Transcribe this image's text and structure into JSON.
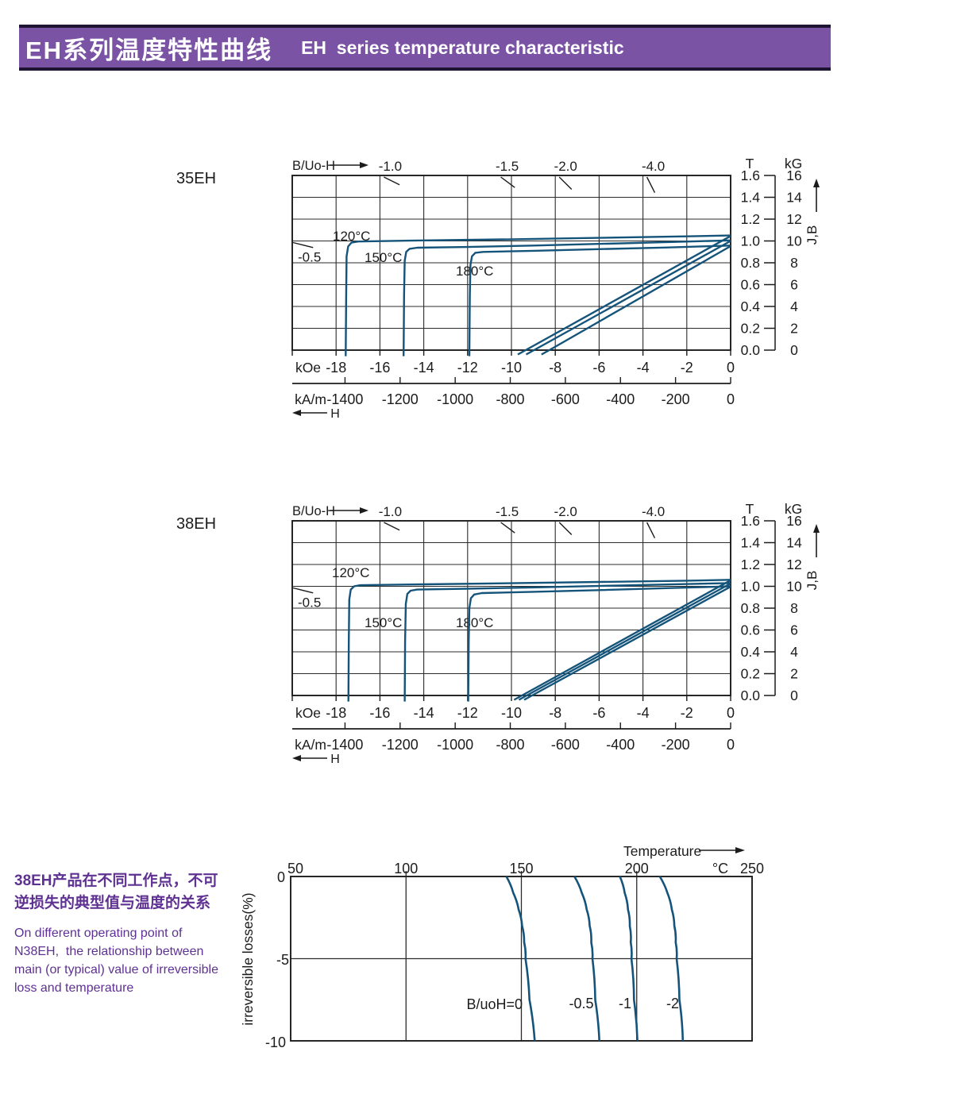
{
  "header": {
    "title_zh": "EH系列温度特性曲线",
    "title_en": "EH  series temperature characteristic"
  },
  "colors": {
    "banner_purple": "#7a53a5",
    "banner_border": "#201434",
    "purple_text": "#5e3192",
    "curve_blue": "#15547a",
    "line_black": "#1c1c1c",
    "grid_gray": "#2b2b2b"
  },
  "section_labels": {
    "chart1": "35EH",
    "chart2": "38EH"
  },
  "demag_axis": {
    "b_axis_label": "B/Uo-H",
    "koe_unit": "kOe",
    "kam_unit": "kA/m",
    "h_arrow_label": "H",
    "t_unit": "T",
    "kg_unit": "kG",
    "jb_arrow_label": "J,B",
    "koe_ticks": [
      -18,
      -16,
      -14,
      -12,
      -10,
      -8,
      -6,
      -4,
      -2,
      0
    ],
    "kam_ticks": [
      -1400,
      -1200,
      -1000,
      -800,
      -600,
      -400,
      -200,
      0
    ],
    "t_ticks": [
      "1.6",
      "1.4",
      "1.2",
      "1.0",
      "0.8",
      "0.6",
      "0.4",
      "0.2",
      "0.0"
    ],
    "kg_ticks": [
      "16",
      "14",
      "12",
      "10",
      "8",
      "6",
      "4",
      "2",
      "0"
    ],
    "load_lines_top": [
      {
        "label": "-1.0",
        "slope": 1.0
      },
      {
        "label": "-1.5",
        "slope": 1.5
      },
      {
        "label": "-2.0",
        "slope": 2.0
      },
      {
        "label": "-4.0",
        "slope": 4.0
      }
    ],
    "load_line_left": {
      "label": "-0.5",
      "slope": 0.5
    }
  },
  "chart_data": [
    {
      "type": "line",
      "id": "demag-35EH",
      "title": "35EH",
      "xlabel": "H",
      "x_units": [
        "kOe",
        "kA/m"
      ],
      "y_units": [
        "T",
        "kG"
      ],
      "xlim_kOe": [
        -20,
        0
      ],
      "ylim_kG": [
        0,
        16
      ],
      "grid": true,
      "load_lines": [
        -0.5,
        -1.0,
        -1.5,
        -2.0,
        -4.0
      ],
      "temperature_labels": [
        "120°C",
        "150°C",
        "180°C"
      ],
      "series": [
        {
          "name": "J 120°C",
          "points": [
            [
              -17.56,
              -0.55
            ],
            [
              -17.54,
              5
            ],
            [
              -17.52,
              8.6
            ],
            [
              -17.45,
              9.5
            ],
            [
              -17.3,
              9.85
            ],
            [
              -17.0,
              9.95
            ],
            [
              -14,
              10.05
            ],
            [
              -10,
              10.15
            ],
            [
              -6,
              10.28
            ],
            [
              -2,
              10.42
            ],
            [
              0,
              10.5
            ]
          ]
        },
        {
          "name": "J 150°C",
          "points": [
            [
              -14.92,
              -0.55
            ],
            [
              -14.9,
              5
            ],
            [
              -14.87,
              8.2
            ],
            [
              -14.8,
              9.0
            ],
            [
              -14.65,
              9.28
            ],
            [
              -14.3,
              9.38
            ],
            [
              -12,
              9.45
            ],
            [
              -9,
              9.58
            ],
            [
              -5,
              9.78
            ],
            [
              0,
              10.05
            ]
          ]
        },
        {
          "name": "J 180°C",
          "points": [
            [
              -11.92,
              -0.55
            ],
            [
              -11.9,
              5
            ],
            [
              -11.87,
              7.8
            ],
            [
              -11.8,
              8.6
            ],
            [
              -11.65,
              8.92
            ],
            [
              -11.3,
              9.0
            ],
            [
              -9,
              9.1
            ],
            [
              -6,
              9.25
            ],
            [
              -3,
              9.4
            ],
            [
              0,
              9.58
            ]
          ]
        },
        {
          "name": "B 120°C",
          "points": [
            [
              -9.71,
              -0.4
            ],
            [
              -9.35,
              0
            ],
            [
              0,
              10.45
            ]
          ]
        },
        {
          "name": "B 150°C",
          "points": [
            [
              -9.33,
              -0.4
            ],
            [
              -8.97,
              0
            ],
            [
              0,
              10.0
            ]
          ]
        },
        {
          "name": "B 180°C",
          "points": [
            [
              -8.63,
              -0.4
            ],
            [
              -8.27,
              0
            ],
            [
              0,
              9.53
            ]
          ]
        }
      ]
    },
    {
      "type": "line",
      "id": "demag-38EH",
      "title": "38EH",
      "xlabel": "H",
      "x_units": [
        "kOe",
        "kA/m"
      ],
      "y_units": [
        "T",
        "kG"
      ],
      "xlim_kOe": [
        -20,
        0
      ],
      "ylim_kG": [
        0,
        16
      ],
      "grid": true,
      "load_lines": [
        -0.5,
        -1.0,
        -1.5,
        -2.0,
        -4.0
      ],
      "temperature_labels": [
        "120°C",
        "150°C",
        "180°C"
      ],
      "series": [
        {
          "name": "J 120°C",
          "points": [
            [
              -17.44,
              -0.55
            ],
            [
              -17.42,
              5
            ],
            [
              -17.4,
              8.8
            ],
            [
              -17.33,
              9.7
            ],
            [
              -17.18,
              10.0
            ],
            [
              -16.9,
              10.1
            ],
            [
              -14,
              10.18
            ],
            [
              -10,
              10.28
            ],
            [
              -6,
              10.4
            ],
            [
              -2,
              10.52
            ],
            [
              0,
              10.6
            ]
          ]
        },
        {
          "name": "J 150°C",
          "points": [
            [
              -14.87,
              -0.55
            ],
            [
              -14.85,
              5
            ],
            [
              -14.82,
              8.4
            ],
            [
              -14.75,
              9.3
            ],
            [
              -14.6,
              9.6
            ],
            [
              -14.3,
              9.7
            ],
            [
              -12,
              9.78
            ],
            [
              -9,
              9.9
            ],
            [
              -5,
              10.08
            ],
            [
              0,
              10.3
            ]
          ]
        },
        {
          "name": "J 180°C",
          "points": [
            [
              -11.97,
              -0.55
            ],
            [
              -11.95,
              5
            ],
            [
              -11.92,
              8.0
            ],
            [
              -11.85,
              8.9
            ],
            [
              -11.7,
              9.25
            ],
            [
              -11.35,
              9.38
            ],
            [
              -9,
              9.5
            ],
            [
              -6,
              9.65
            ],
            [
              -2,
              9.88
            ],
            [
              0,
              10.0
            ]
          ]
        },
        {
          "name": "B 120°C",
          "points": [
            [
              -9.88,
              -0.4
            ],
            [
              -9.52,
              0
            ],
            [
              0,
              10.55
            ]
          ]
        },
        {
          "name": "B 150°C",
          "points": [
            [
              -9.66,
              -0.4
            ],
            [
              -9.3,
              0
            ],
            [
              0,
              10.26
            ]
          ]
        },
        {
          "name": "B 180°C",
          "points": [
            [
              -9.42,
              -0.4
            ],
            [
              -9.06,
              0
            ],
            [
              0,
              9.97
            ]
          ]
        }
      ]
    },
    {
      "type": "line",
      "id": "irreversible-loss-38EH",
      "xlabel": "Temperature",
      "x_unit": "°C",
      "ylabel": "irreversible  losses(%)",
      "xlim": [
        50,
        250
      ],
      "ylim": [
        -10,
        0
      ],
      "x_ticks": [
        "50",
        "100",
        "150",
        "200",
        "250"
      ],
      "y_ticks": [
        "0",
        "-5",
        "-10"
      ],
      "series": [
        {
          "name": "B/uoH=0",
          "points": [
            [
              143.5,
              0
            ],
            [
              146.5,
              -1
            ],
            [
              148.8,
              -2
            ],
            [
              150.3,
              -3
            ],
            [
              151.2,
              -4
            ],
            [
              151.8,
              -5
            ],
            [
              153.5,
              -7.5
            ],
            [
              155.8,
              -10
            ]
          ]
        },
        {
          "name": "-0.5",
          "points": [
            [
              173.0,
              0
            ],
            [
              176.2,
              -1
            ],
            [
              178.3,
              -2
            ],
            [
              179.6,
              -3
            ],
            [
              180.3,
              -4
            ],
            [
              180.8,
              -5
            ],
            [
              182.0,
              -7.5
            ],
            [
              183.8,
              -10
            ]
          ]
        },
        {
          "name": "-1",
          "points": [
            [
              192.7,
              0
            ],
            [
              194.8,
              -1
            ],
            [
              196.2,
              -2
            ],
            [
              197.0,
              -3
            ],
            [
              197.4,
              -4
            ],
            [
              197.7,
              -5
            ],
            [
              198.8,
              -7.5
            ],
            [
              200.3,
              -10
            ]
          ]
        },
        {
          "name": "-2",
          "points": [
            [
              210.0,
              0
            ],
            [
              213.3,
              -1
            ],
            [
              215.2,
              -2
            ],
            [
              216.3,
              -3
            ],
            [
              216.9,
              -4
            ],
            [
              217.3,
              -5
            ],
            [
              218.5,
              -7.5
            ],
            [
              220.0,
              -10
            ]
          ]
        }
      ]
    }
  ],
  "note": {
    "zh_lines": [
      "38EH产品在不同工作点，不可",
      "逆损失的典型值与温度的关系"
    ],
    "en_lines": [
      "On different operating point of",
      "N38EH,  the relationship between",
      "main (or typical) value of irreversible",
      "loss and temperature"
    ]
  }
}
